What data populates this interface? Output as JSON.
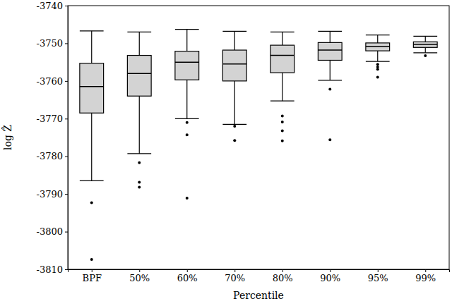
{
  "chart_data": {
    "type": "box",
    "x_label": "Percentile",
    "y_label": "log Ẑ",
    "categories": [
      "BPF",
      "50%",
      "60%",
      "70%",
      "80%",
      "90%",
      "95%",
      "99%"
    ],
    "whisker_low": [
      -3786.5,
      -3779.3,
      -3770,
      -3771.5,
      -3765.3,
      -3759.8,
      -3754.8,
      -3752.5
    ],
    "q1": [
      -3768.5,
      -3764,
      -3759.7,
      -3760,
      -3757.8,
      -3754.5,
      -3752,
      -3751.1
    ],
    "median": [
      -3761.5,
      -3758,
      -3755,
      -3755.5,
      -3753.2,
      -3751.8,
      -3750.8,
      -3750.3
    ],
    "q3": [
      -3755.3,
      -3753.2,
      -3752.1,
      -3751.8,
      -3750.5,
      -3749.8,
      -3749.9,
      -3749.6
    ],
    "whisker_high": [
      -3746.7,
      -3747,
      -3746.3,
      -3746.8,
      -3747,
      -3746.8,
      -3747.8,
      -3748.1
    ],
    "outliers": [
      [
        -3792.3,
        -3807.4
      ],
      [
        -3781.7,
        -3786.9,
        -3788.2
      ],
      [
        -3771,
        -3774.3,
        -3791.1
      ],
      [
        -3772,
        -3775.8
      ],
      [
        -3769.3,
        -3770.9,
        -3773.2,
        -3775.9
      ],
      [
        -3762.2,
        -3775.6
      ],
      [
        -3755.6,
        -3756.3,
        -3756.9,
        -3759
      ],
      [
        -3753.3
      ]
    ],
    "color": "#d3d3d3",
    "ylim": [
      -3810,
      -3740
    ],
    "yticks": [
      -3810,
      -3800,
      -3790,
      -3780,
      -3770,
      -3760,
      -3750,
      -3740
    ],
    "grid": false
  }
}
